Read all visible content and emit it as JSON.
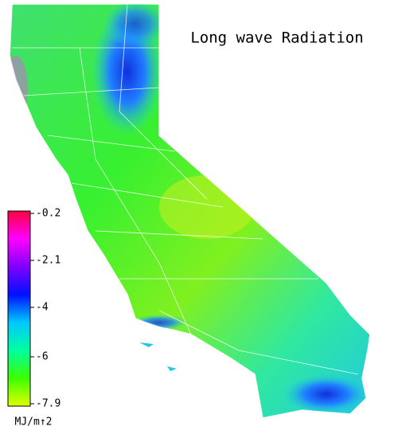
{
  "title": "Long wave Radiation",
  "colorbar": {
    "lim": [
      -7.9,
      -0.2
    ],
    "ticks": [
      -0.2,
      -2.1,
      -4.0,
      -6.0,
      -7.9
    ],
    "unit": "MJ/m↑2",
    "colors": [
      "#e0ff00",
      "#3cff00",
      "#00ffa0",
      "#00c8ff",
      "#0010ff",
      "#8000ff",
      "#ff00ff",
      "#ff0040"
    ]
  }
}
